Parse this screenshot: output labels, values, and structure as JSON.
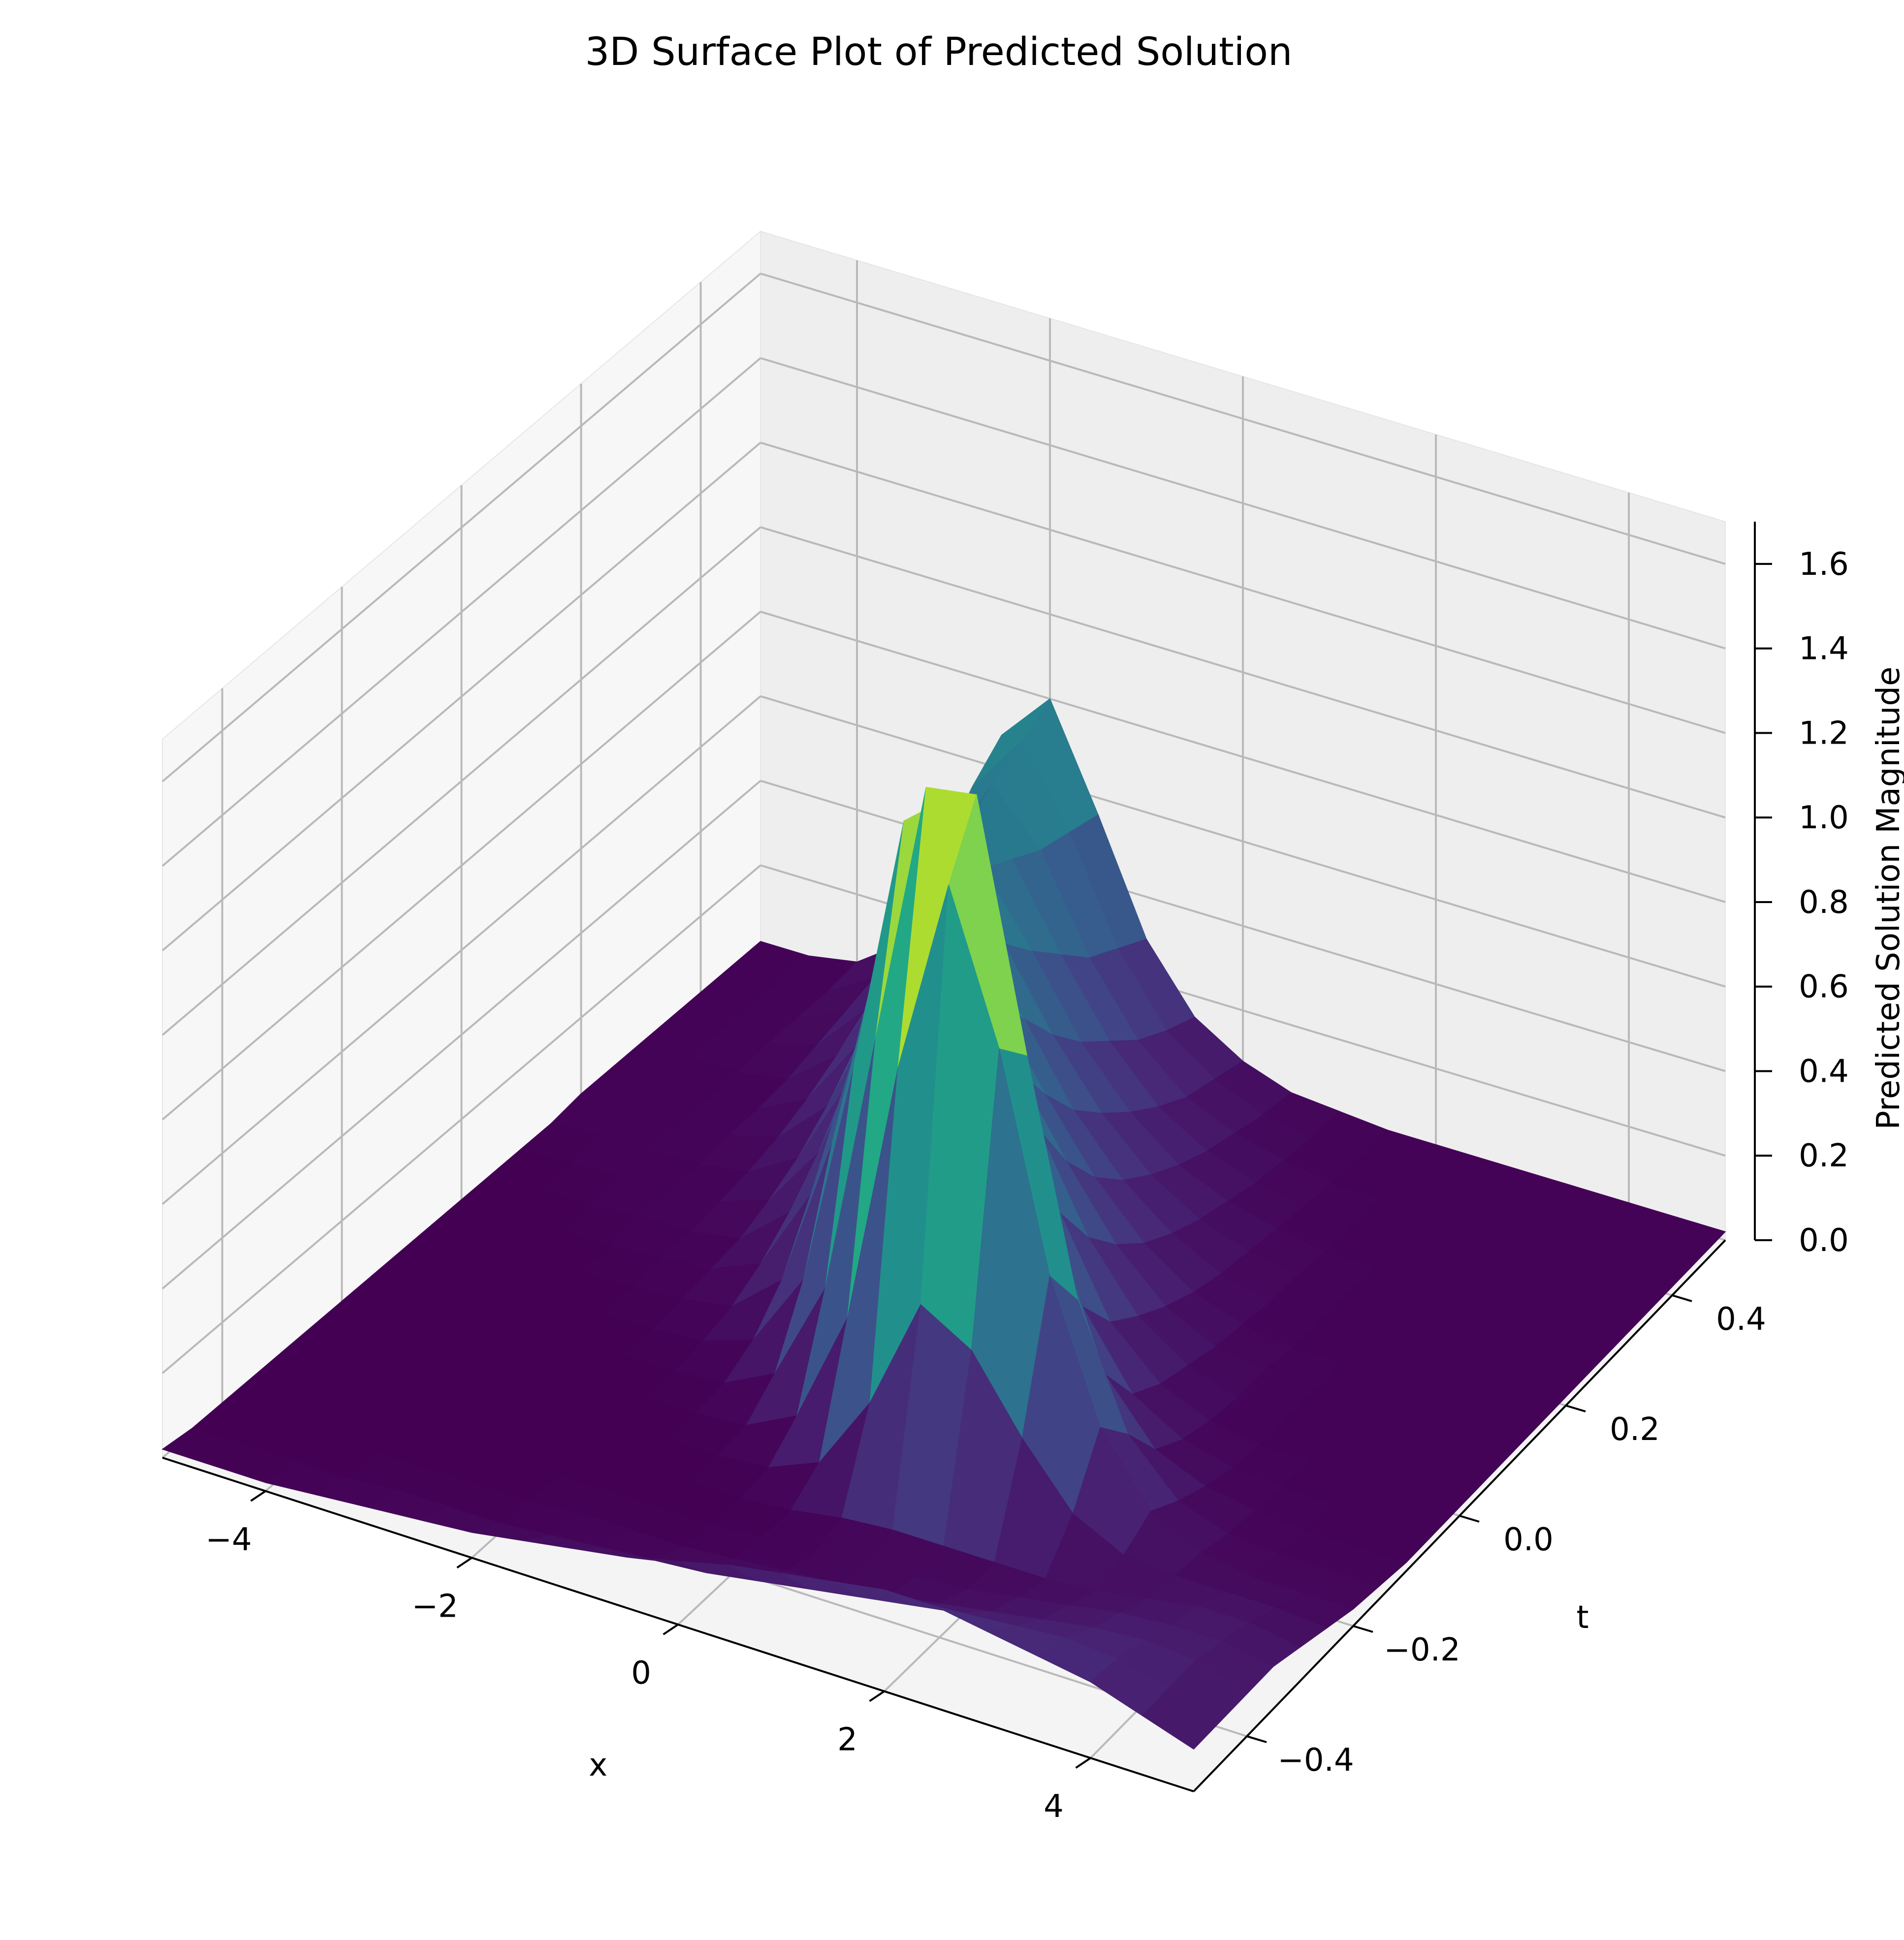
{
  "chart_data": {
    "type": "surface3d",
    "title": "3D Surface Plot of Predicted Solution",
    "xlabel": "x",
    "ylabel": "t",
    "zlabel": "Predicted Solution Magnitude",
    "xlim": [
      -5,
      5
    ],
    "ylim": [
      -0.5,
      0.5
    ],
    "zlim": [
      0,
      1.7
    ],
    "x_ticks": [
      -4,
      -2,
      0,
      2,
      4
    ],
    "x_tick_labels": [
      "−4",
      "−2",
      "0",
      "2",
      "4"
    ],
    "y_ticks": [
      -0.4,
      -0.2,
      0.0,
      0.2,
      0.4
    ],
    "y_tick_labels": [
      "−0.4",
      "−0.2",
      "0.0",
      "0.2",
      "0.4"
    ],
    "z_ticks": [
      0.0,
      0.2,
      0.4,
      0.6,
      0.8,
      1.0,
      1.2,
      1.4,
      1.6
    ],
    "z_tick_labels": [
      "0.0",
      "0.2",
      "0.4",
      "0.6",
      "0.8",
      "1.0",
      "1.2",
      "1.4",
      "1.6"
    ],
    "colormap": "viridis",
    "grid": true,
    "surface": {
      "x": [
        -5.0,
        -4.5,
        -4.0,
        -3.5,
        -3.0,
        -2.5,
        -2.0,
        -1.5,
        -1.0,
        -0.5,
        0.0,
        0.5,
        1.0,
        1.5,
        2.0,
        2.5,
        3.0,
        3.5,
        4.0,
        4.5,
        5.0
      ],
      "t": [
        -0.5,
        -0.45,
        -0.4,
        -0.35,
        -0.3,
        -0.25,
        -0.2,
        -0.15,
        -0.1,
        -0.05,
        0.0,
        0.05,
        0.1,
        0.15,
        0.2,
        0.25,
        0.3,
        0.35,
        0.4,
        0.45,
        0.5
      ],
      "z": [
        [
          0.02,
          0.02,
          0.02,
          0.03,
          0.04,
          0.05,
          0.06,
          0.08,
          0.1,
          0.12,
          0.15,
          0.18,
          0.2,
          0.22,
          0.24,
          0.24,
          0.22,
          0.2,
          0.18,
          0.14,
          0.1
        ],
        [
          0.01,
          0.01,
          0.01,
          0.01,
          0.02,
          0.02,
          0.02,
          0.03,
          0.04,
          0.05,
          0.06,
          0.08,
          0.1,
          0.12,
          0.14,
          0.16,
          0.17,
          0.18,
          0.17,
          0.14,
          0.1
        ],
        [
          0.01,
          0.01,
          0.01,
          0.01,
          0.01,
          0.01,
          0.01,
          0.02,
          0.02,
          0.02,
          0.03,
          0.04,
          0.05,
          0.06,
          0.08,
          0.1,
          0.12,
          0.14,
          0.15,
          0.14,
          0.1
        ],
        [
          0.01,
          0.01,
          0.01,
          0.01,
          0.01,
          0.01,
          0.01,
          0.01,
          0.01,
          0.01,
          0.02,
          0.02,
          0.03,
          0.04,
          0.05,
          0.07,
          0.09,
          0.11,
          0.12,
          0.12,
          0.1
        ],
        [
          0.01,
          0.01,
          0.01,
          0.01,
          0.01,
          0.01,
          0.01,
          0.01,
          0.01,
          0.01,
          0.02,
          0.04,
          0.05,
          0.05,
          0.05,
          0.05,
          0.06,
          0.08,
          0.1,
          0.1,
          0.08
        ],
        [
          0.01,
          0.01,
          0.01,
          0.01,
          0.01,
          0.01,
          0.01,
          0.01,
          0.01,
          0.02,
          0.07,
          0.25,
          0.52,
          0.45,
          0.28,
          0.14,
          0.08,
          0.07,
          0.07,
          0.07,
          0.06
        ],
        [
          0.01,
          0.01,
          0.01,
          0.01,
          0.01,
          0.01,
          0.01,
          0.01,
          0.02,
          0.08,
          0.35,
          0.98,
          1.45,
          1.1,
          0.6,
          0.28,
          0.12,
          0.06,
          0.04,
          0.04,
          0.04
        ],
        [
          0.01,
          0.01,
          0.01,
          0.01,
          0.01,
          0.01,
          0.01,
          0.02,
          0.08,
          0.32,
          0.95,
          1.58,
          1.6,
          1.02,
          0.48,
          0.2,
          0.08,
          0.04,
          0.03,
          0.03,
          0.03
        ],
        [
          0.01,
          0.01,
          0.01,
          0.01,
          0.01,
          0.01,
          0.02,
          0.06,
          0.24,
          0.78,
          1.4,
          1.5,
          1.05,
          0.55,
          0.24,
          0.1,
          0.05,
          0.03,
          0.02,
          0.02,
          0.02
        ],
        [
          0.01,
          0.01,
          0.01,
          0.01,
          0.01,
          0.02,
          0.04,
          0.14,
          0.5,
          1.02,
          1.2,
          1.0,
          0.62,
          0.3,
          0.13,
          0.06,
          0.03,
          0.02,
          0.02,
          0.02,
          0.02
        ],
        [
          0.01,
          0.01,
          0.01,
          0.01,
          0.02,
          0.03,
          0.08,
          0.28,
          0.7,
          0.98,
          0.95,
          0.72,
          0.42,
          0.2,
          0.09,
          0.04,
          0.02,
          0.02,
          0.02,
          0.02,
          0.02
        ],
        [
          0.01,
          0.01,
          0.01,
          0.02,
          0.02,
          0.04,
          0.14,
          0.42,
          0.76,
          0.86,
          0.74,
          0.52,
          0.3,
          0.15,
          0.07,
          0.03,
          0.02,
          0.02,
          0.02,
          0.02,
          0.02
        ],
        [
          0.01,
          0.01,
          0.02,
          0.02,
          0.03,
          0.07,
          0.22,
          0.54,
          0.78,
          0.74,
          0.56,
          0.38,
          0.22,
          0.11,
          0.05,
          0.03,
          0.02,
          0.02,
          0.02,
          0.02,
          0.02
        ],
        [
          0.01,
          0.02,
          0.02,
          0.02,
          0.04,
          0.11,
          0.32,
          0.62,
          0.74,
          0.62,
          0.44,
          0.28,
          0.16,
          0.08,
          0.04,
          0.02,
          0.02,
          0.02,
          0.02,
          0.02,
          0.02
        ],
        [
          0.02,
          0.02,
          0.02,
          0.03,
          0.06,
          0.17,
          0.42,
          0.68,
          0.68,
          0.52,
          0.34,
          0.21,
          0.12,
          0.06,
          0.03,
          0.02,
          0.02,
          0.02,
          0.02,
          0.02,
          0.02
        ],
        [
          0.02,
          0.02,
          0.02,
          0.03,
          0.09,
          0.25,
          0.52,
          0.7,
          0.6,
          0.42,
          0.27,
          0.16,
          0.09,
          0.05,
          0.03,
          0.02,
          0.02,
          0.02,
          0.02,
          0.02,
          0.02
        ],
        [
          0.02,
          0.02,
          0.02,
          0.04,
          0.13,
          0.34,
          0.6,
          0.68,
          0.52,
          0.34,
          0.21,
          0.12,
          0.07,
          0.04,
          0.02,
          0.02,
          0.02,
          0.02,
          0.02,
          0.02,
          0.02
        ],
        [
          0.02,
          0.02,
          0.03,
          0.06,
          0.18,
          0.44,
          0.66,
          0.64,
          0.45,
          0.28,
          0.16,
          0.09,
          0.05,
          0.03,
          0.02,
          0.02,
          0.02,
          0.02,
          0.02,
          0.02,
          0.02
        ],
        [
          0.02,
          0.02,
          0.03,
          0.08,
          0.24,
          0.54,
          0.72,
          0.6,
          0.38,
          0.22,
          0.12,
          0.07,
          0.04,
          0.02,
          0.02,
          0.02,
          0.02,
          0.02,
          0.02,
          0.02,
          0.02
        ],
        [
          0.02,
          0.02,
          0.03,
          0.1,
          0.3,
          0.62,
          0.76,
          0.58,
          0.34,
          0.18,
          0.1,
          0.05,
          0.03,
          0.02,
          0.02,
          0.02,
          0.02,
          0.02,
          0.02,
          0.02,
          0.02
        ],
        [
          0.02,
          0.02,
          0.04,
          0.12,
          0.35,
          0.68,
          0.8,
          0.56,
          0.3,
          0.15,
          0.08,
          0.04,
          0.03,
          0.02,
          0.02,
          0.02,
          0.02,
          0.02,
          0.02,
          0.02,
          0.02
        ]
      ]
    }
  }
}
